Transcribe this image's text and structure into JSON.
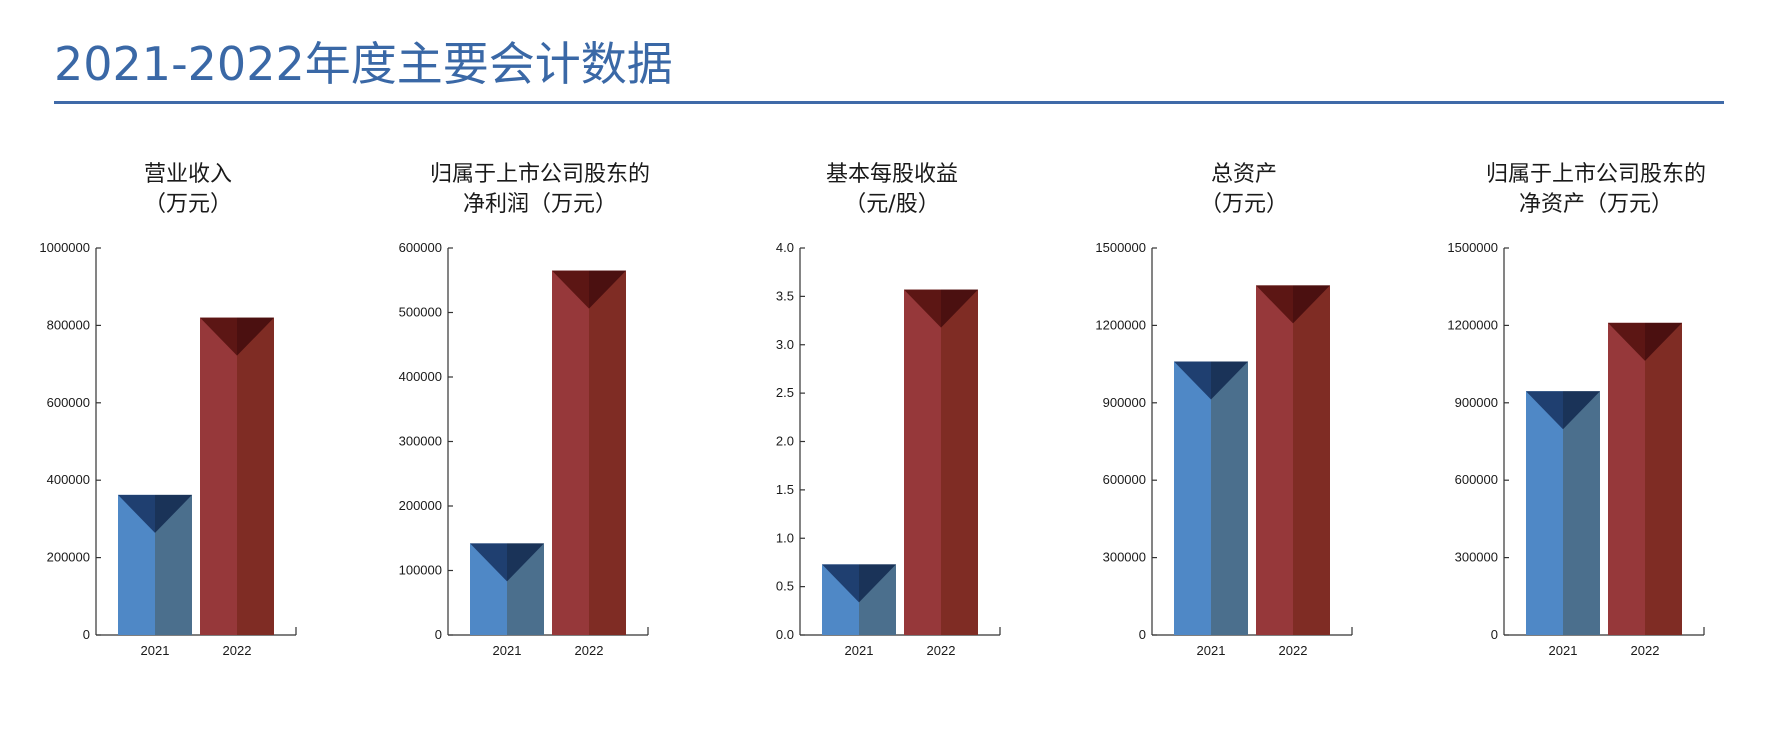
{
  "page": {
    "title": "2021-2022年度主要会计数据"
  },
  "colors": {
    "series_2021": {
      "front": "#4f88c6",
      "side": "#4b6f8d",
      "top_left": "#1f3f70",
      "top_right": "#1a3358"
    },
    "series_2022": {
      "front": "#96383a",
      "side": "#7f2c24",
      "top_left": "#5c1614",
      "top_right": "#4b1010"
    },
    "axis": "#333333",
    "title": "#3a68a6"
  },
  "chart_data": [
    {
      "type": "bar",
      "title_lines": [
        "营业收入",
        "（万元）"
      ],
      "categories": [
        "2021",
        "2022"
      ],
      "values": [
        362000,
        820000
      ],
      "ylim": [
        0,
        1000000
      ],
      "yticks": [
        0,
        200000,
        400000,
        600000,
        800000,
        1000000
      ],
      "ytick_labels": [
        "0",
        "200000",
        "400000",
        "600000",
        "800000",
        "1000000"
      ],
      "grid": false,
      "legend": "none"
    },
    {
      "type": "bar",
      "title_lines": [
        "归属于上市公司股东的",
        "净利润（万元）"
      ],
      "categories": [
        "2021",
        "2022"
      ],
      "values": [
        142000,
        565000
      ],
      "ylim": [
        0,
        600000
      ],
      "yticks": [
        0,
        100000,
        200000,
        300000,
        400000,
        500000,
        600000
      ],
      "ytick_labels": [
        "0",
        "100000",
        "200000",
        "300000",
        "400000",
        "500000",
        "600000"
      ],
      "grid": false,
      "legend": "none"
    },
    {
      "type": "bar",
      "title_lines": [
        "基本每股收益",
        "（元/股）"
      ],
      "categories": [
        "2021",
        "2022"
      ],
      "values": [
        0.73,
        3.57
      ],
      "ylim": [
        0,
        4.0
      ],
      "yticks": [
        0,
        0.5,
        1.0,
        1.5,
        2.0,
        2.5,
        3.0,
        3.5,
        4.0
      ],
      "ytick_labels": [
        "0.0",
        "0.5",
        "1.0",
        "1.5",
        "2.0",
        "2.5",
        "3.0",
        "3.5",
        "4.0"
      ],
      "grid": false,
      "legend": "none"
    },
    {
      "type": "bar",
      "title_lines": [
        "总资产",
        "（万元）"
      ],
      "categories": [
        "2021",
        "2022"
      ],
      "values": [
        1060000,
        1355000
      ],
      "ylim": [
        0,
        1500000
      ],
      "yticks": [
        0,
        300000,
        600000,
        900000,
        1200000,
        1500000
      ],
      "ytick_labels": [
        "0",
        "300000",
        "600000",
        "900000",
        "1200000",
        "1500000"
      ],
      "grid": false,
      "legend": "none"
    },
    {
      "type": "bar",
      "title_lines": [
        "归属于上市公司股东的",
        "净资产（万元）"
      ],
      "categories": [
        "2021",
        "2022"
      ],
      "values": [
        945000,
        1210000
      ],
      "ylim": [
        0,
        1500000
      ],
      "yticks": [
        0,
        300000,
        600000,
        900000,
        1200000,
        1500000
      ],
      "ytick_labels": [
        "0",
        "300000",
        "600000",
        "900000",
        "1200000",
        "1500000"
      ],
      "grid": false,
      "legend": "none"
    }
  ]
}
